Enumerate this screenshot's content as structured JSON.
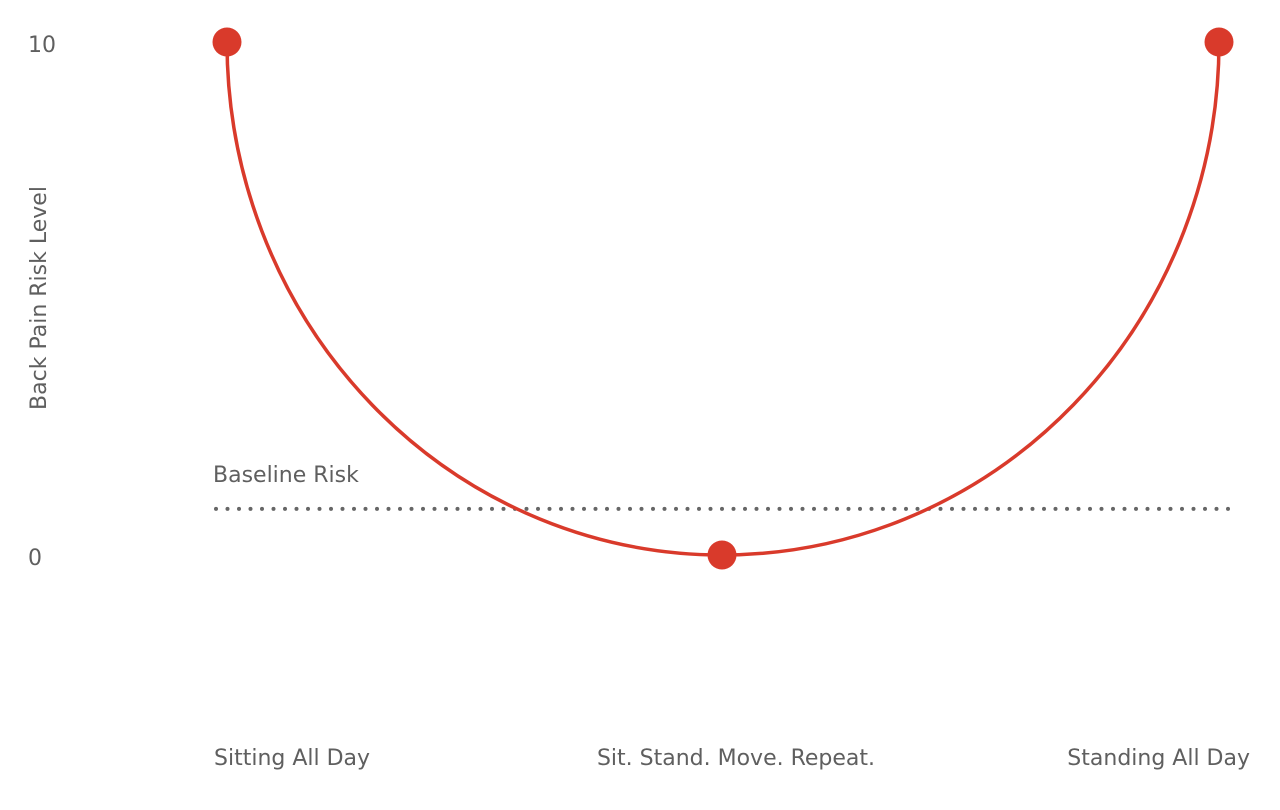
{
  "chart_data": {
    "type": "line",
    "title": "",
    "xlabel": "",
    "ylabel": "Back Pain Risk Level",
    "ylim": [
      0,
      10
    ],
    "y_ticks": [
      "0",
      "10"
    ],
    "categories": [
      "Sitting All Day",
      "Sit. Stand. Move. Repeat.",
      "Standing All Day"
    ],
    "series": [
      {
        "values": [
          10,
          0,
          10
        ],
        "color": "#d93a2b",
        "curve": "smooth-u"
      }
    ],
    "reference_line": {
      "label": "Baseline Risk",
      "value": 0.9,
      "style": "dotted",
      "color": "#666666"
    },
    "grid": false,
    "legend": "none"
  }
}
